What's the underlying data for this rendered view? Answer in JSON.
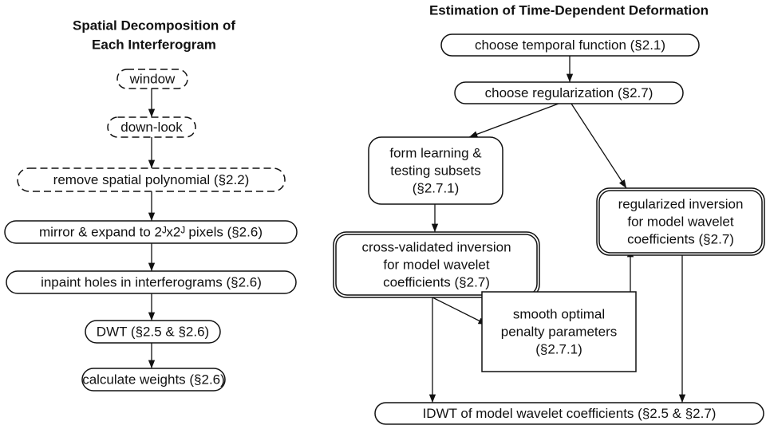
{
  "left": {
    "title": [
      "Spatial Decomposition of",
      "Each Interferogram"
    ],
    "nodes": [
      {
        "lines": [
          "window"
        ]
      },
      {
        "lines": [
          "down-look"
        ]
      },
      {
        "lines": [
          "remove spatial polynomial (§2.2)"
        ]
      },
      {
        "lines": [
          "mirror & expand to 2ᴶx2ᴶ pixels (§2.6)"
        ]
      },
      {
        "lines": [
          "inpaint holes in interferograms (§2.6)"
        ]
      },
      {
        "lines": [
          "DWT (§2.5 & §2.6)"
        ]
      },
      {
        "lines": [
          "calculate weights (§2.6)"
        ]
      }
    ]
  },
  "right": {
    "title": [
      "Estimation of Time-Dependent Deformation"
    ],
    "nodes": [
      {
        "lines": [
          "choose temporal function (§2.1)"
        ]
      },
      {
        "lines": [
          "choose regularization (§2.7)"
        ]
      },
      {
        "lines": [
          "form learning &",
          "testing subsets",
          "(§2.7.1)"
        ]
      },
      {
        "lines": [
          "regularized inversion",
          "for model wavelet",
          "coefficients (§2.7)"
        ]
      },
      {
        "lines": [
          "cross-validated inversion",
          "for model wavelet",
          "coefficients (§2.7)"
        ]
      },
      {
        "lines": [
          "smooth optimal",
          "penalty parameters",
          "(§2.7.1)"
        ]
      },
      {
        "lines": [
          "IDWT of model wavelet coefficients (§2.5 & §2.7)"
        ]
      }
    ]
  }
}
